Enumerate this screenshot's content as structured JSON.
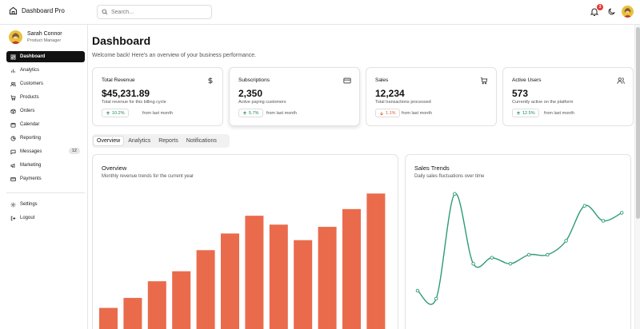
{
  "app": {
    "title": "Dashboard Pro"
  },
  "search": {
    "placeholder": "Search..."
  },
  "notifications": {
    "count": "3"
  },
  "user": {
    "name": "Sarah Connor",
    "role": "Product Manager"
  },
  "sidebar": {
    "items": [
      {
        "label": "Dashboard",
        "icon": "layout-dashboard-icon",
        "active": true
      },
      {
        "label": "Analytics",
        "icon": "bar-chart-icon"
      },
      {
        "label": "Customers",
        "icon": "users-icon"
      },
      {
        "label": "Products",
        "icon": "shopping-cart-icon"
      },
      {
        "label": "Orders",
        "icon": "package-icon"
      },
      {
        "label": "Calendar",
        "icon": "calendar-icon"
      },
      {
        "label": "Reporting",
        "icon": "file-chart-icon"
      },
      {
        "label": "Messages",
        "icon": "message-icon",
        "count": "12"
      },
      {
        "label": "Marketing",
        "icon": "megaphone-icon"
      },
      {
        "label": "Payments",
        "icon": "credit-card-icon"
      }
    ],
    "footer": [
      {
        "label": "Settings",
        "icon": "gear-icon"
      },
      {
        "label": "Logout",
        "icon": "logout-icon"
      }
    ]
  },
  "page": {
    "title": "Dashboard",
    "subtitle": "Welcome back! Here's an overview of your business performance."
  },
  "cards": [
    {
      "title": "Total Revenue",
      "icon": "dollar-icon",
      "value": "$45,231.89",
      "desc": "Total revenue for this billing cycle",
      "change": "10.2%",
      "trend": "up",
      "from": "from last month"
    },
    {
      "title": "Subscriptions",
      "icon": "credit-card-icon",
      "value": "2,350",
      "desc": "Active paying customers",
      "change": "5.7%",
      "trend": "up",
      "from": "from last month"
    },
    {
      "title": "Sales",
      "icon": "shopping-cart-icon",
      "value": "12,234",
      "desc": "Total transactions processed",
      "change": "1.1%",
      "trend": "down",
      "from": "from last month"
    },
    {
      "title": "Active Users",
      "icon": "users-icon",
      "value": "573",
      "desc": "Currently active on the platform",
      "change": "12.5%",
      "trend": "up",
      "from": "from last month"
    }
  ],
  "tabs": [
    "Overview",
    "Analytics",
    "Reports",
    "Notifications"
  ],
  "overview": {
    "title": "Overview",
    "subtitle": "Monthly revenue trends for the current year"
  },
  "trends": {
    "title": "Sales Trends",
    "subtitle": "Daily sales fluctuations over time"
  },
  "colors": {
    "bar": "#e96b4c",
    "line": "#2e9b73",
    "up": "#1a8a53",
    "down": "#e05a2a"
  },
  "chart_data": [
    {
      "type": "bar",
      "values": [
        19,
        28,
        43,
        52,
        71,
        86,
        102,
        94,
        80,
        92,
        108,
        122
      ],
      "ylim": [
        0,
        128
      ]
    },
    {
      "type": "line",
      "values": [
        48,
        40,
        145,
        75,
        81,
        75,
        84,
        84,
        98,
        133,
        118,
        126
      ],
      "ylim": [
        0,
        160
      ]
    }
  ]
}
